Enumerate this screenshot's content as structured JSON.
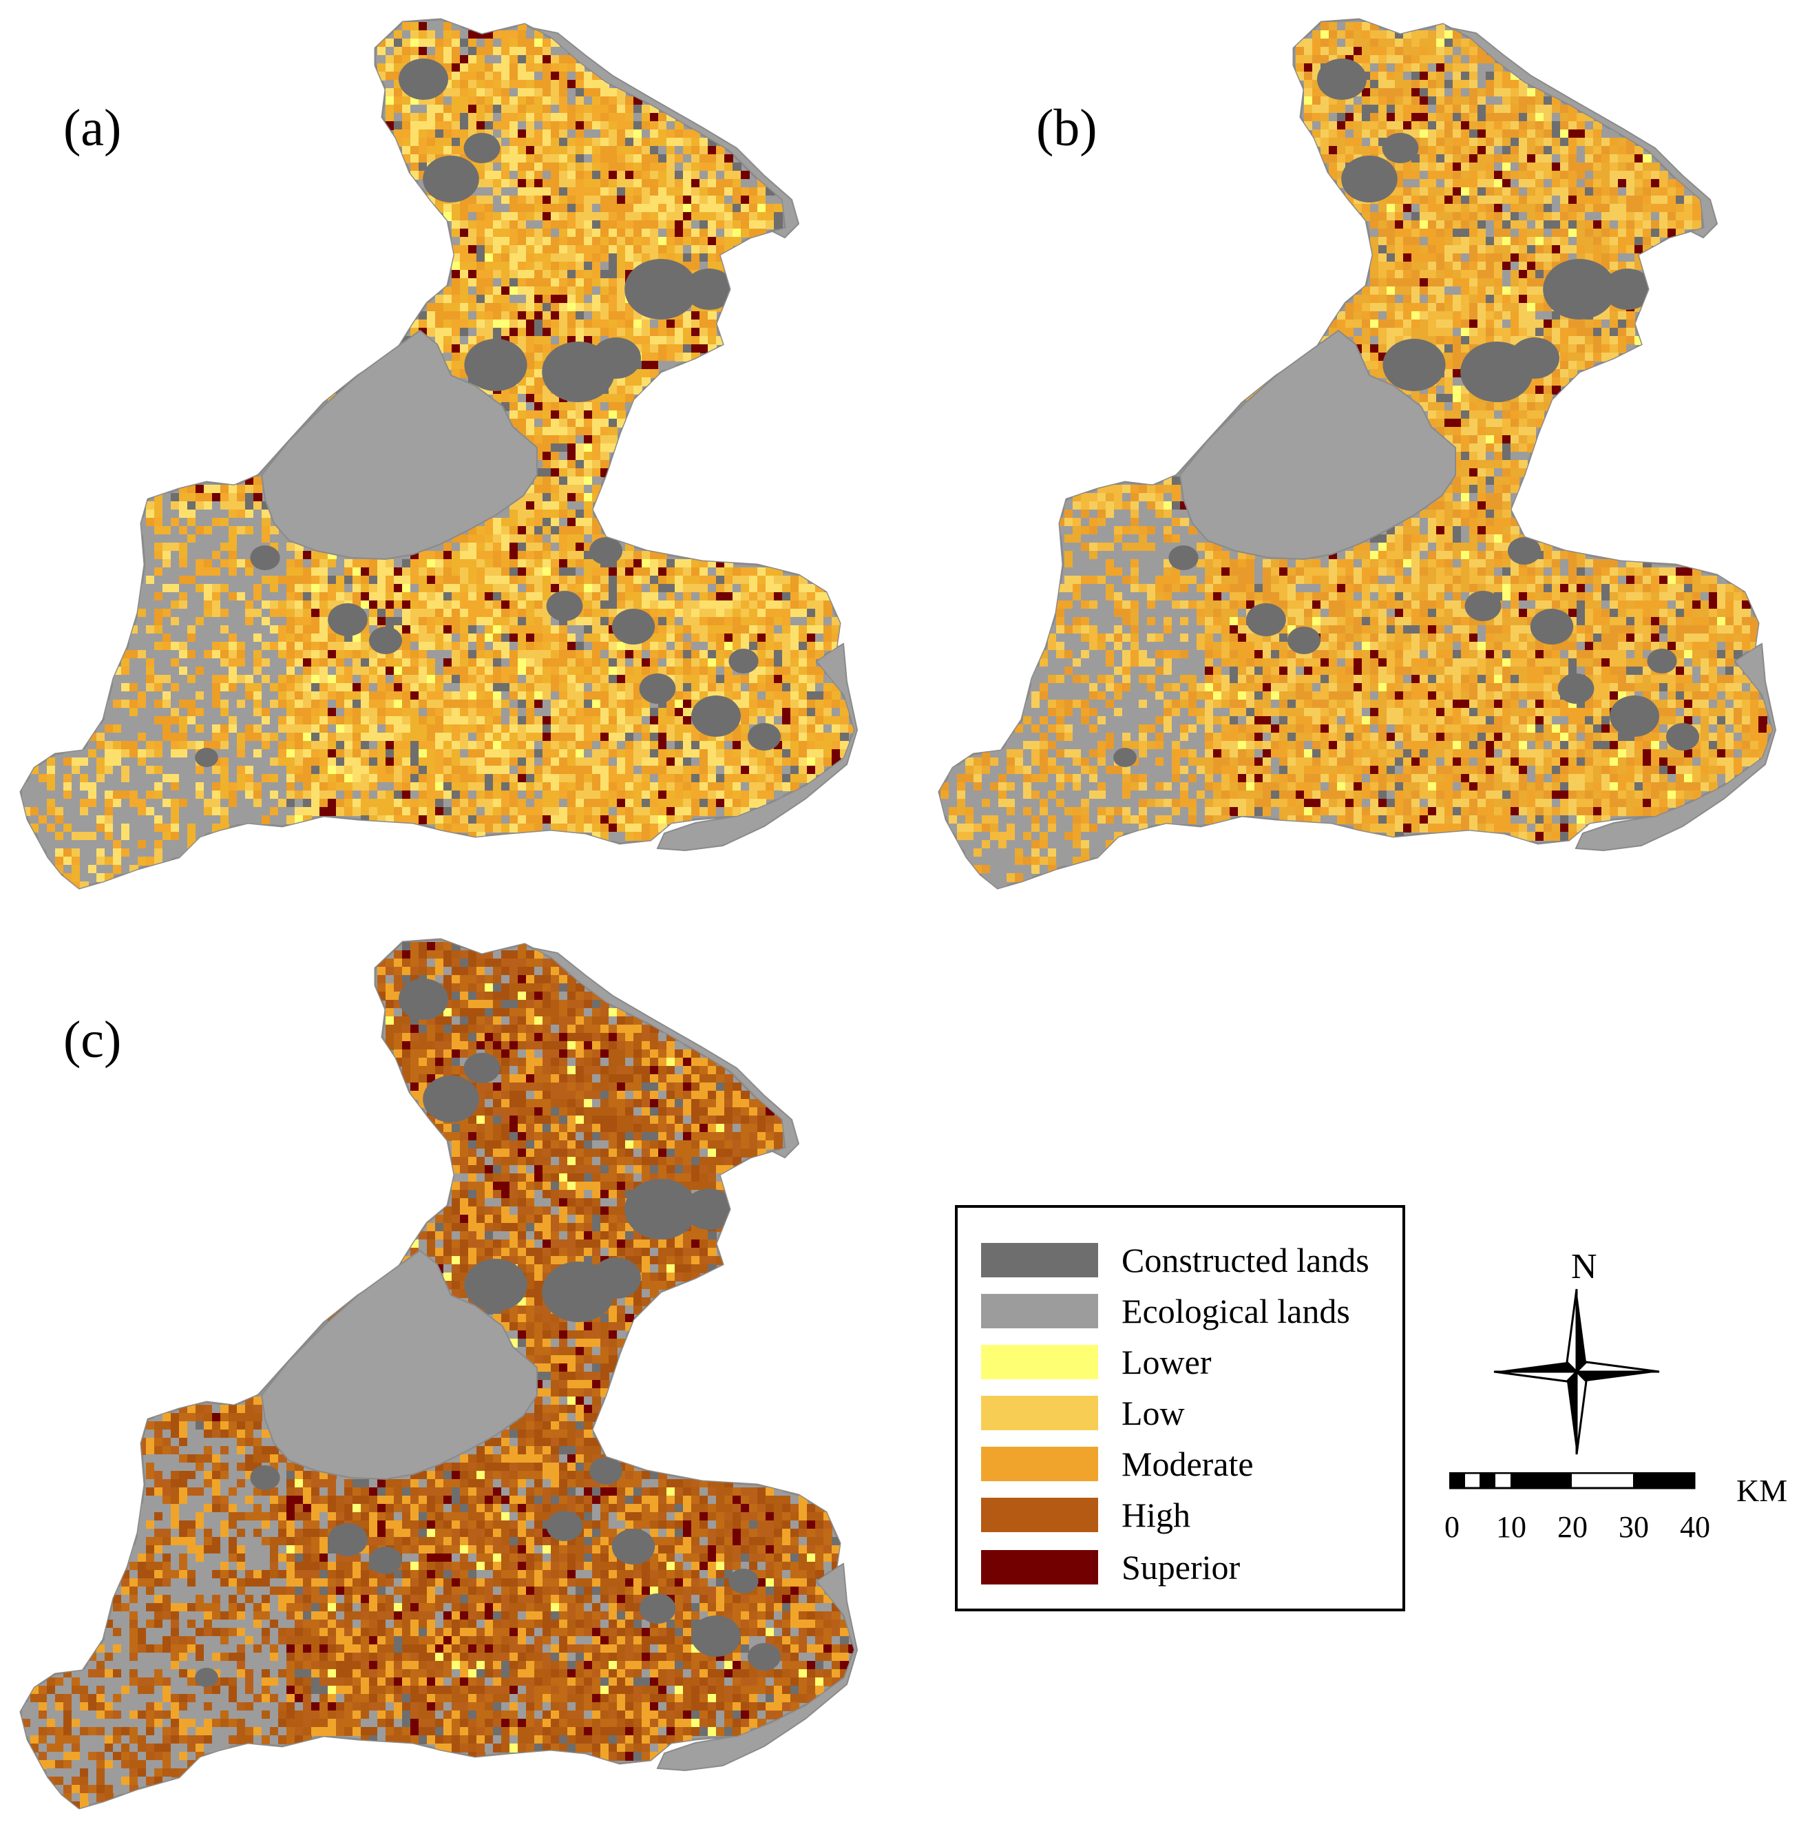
{
  "panels": [
    {
      "id": "a",
      "label": "(a)",
      "palette": [
        "#f2a92c",
        "#f0b22c",
        "#f6c84f",
        "#fde06c",
        "#ec9e27"
      ],
      "south_west_share": 0.55
    },
    {
      "id": "b",
      "label": "(b)",
      "palette": [
        "#f0a52a",
        "#f3ba3d",
        "#f7cd5a",
        "#ebaa30",
        "#e89b2b"
      ],
      "south_west_share": 0.55
    },
    {
      "id": "c",
      "label": "(c)",
      "palette": [
        "#b35d12",
        "#a9520f",
        "#c06a16",
        "#b8601a",
        "#f0a52a"
      ],
      "south_west_share": 0.45
    }
  ],
  "legend": {
    "items": [
      {
        "label": "Constructed lands",
        "color": "#6e6e6e"
      },
      {
        "label": "Ecological lands",
        "color": "#9c9c9c"
      },
      {
        "label": "Lower",
        "color": "#ffff73"
      },
      {
        "label": "Low",
        "color": "#f8cd53"
      },
      {
        "label": "Moderate",
        "color": "#f0a42b"
      },
      {
        "label": "High",
        "color": "#b55a13"
      },
      {
        "label": "Superior",
        "color": "#730000"
      }
    ]
  },
  "north_arrow": {
    "label": "N",
    "icon": "compass-rose-icon"
  },
  "scale_bar": {
    "unit": "KM",
    "ticks": [
      "0",
      "10",
      "20",
      "30",
      "40"
    ]
  },
  "colors": {
    "lake": "#a0a0a0",
    "outline": "#8a8a8a",
    "constructed": "#6e6e6e",
    "ecological": "#9c9c9c",
    "superior": "#730000",
    "lower": "#ffff73"
  }
}
